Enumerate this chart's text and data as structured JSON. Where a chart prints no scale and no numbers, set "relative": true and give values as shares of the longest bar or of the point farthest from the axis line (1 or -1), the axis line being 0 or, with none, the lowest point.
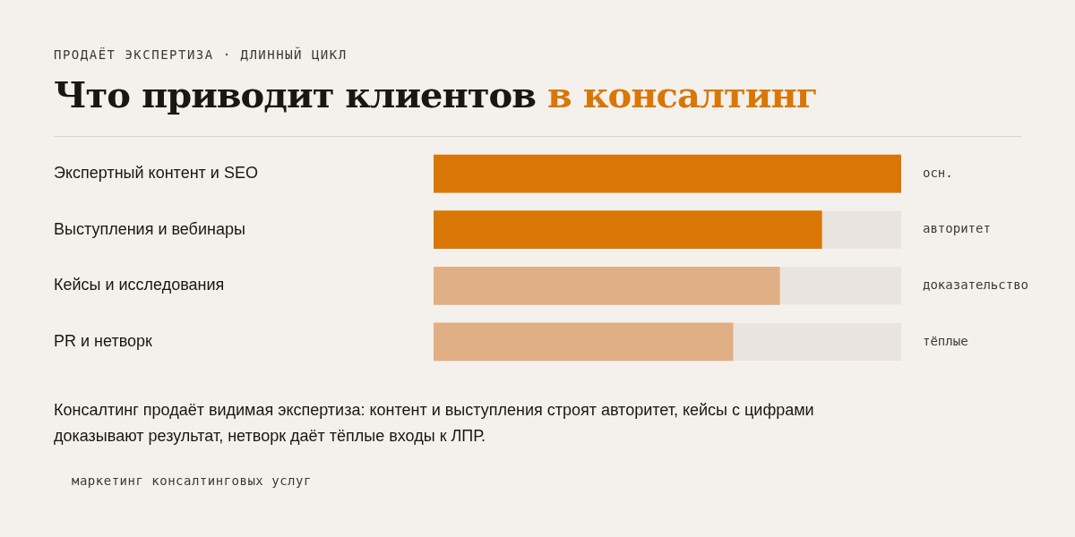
{
  "chart_data": {
    "type": "bar",
    "orientation": "horizontal",
    "relative": true,
    "subtitle": "ПРОДАЁТ ЭКСПЕРТИЗА · ДЛИННЫЙ ЦИКЛ",
    "title": "Что приводит клиентов в консалтинг",
    "categories": [
      "Экспертный контент и SEO",
      "Выступления и вебинары",
      "Кейсы и исследования",
      "PR и нетворк"
    ],
    "values": [
      1,
      0.83,
      0.74,
      0.64
    ],
    "colors": [
      "#d97706",
      "#d97706",
      "#e1af86",
      "#e1af86"
    ],
    "annotations": [
      "осн.",
      "авторитет",
      "доказательство",
      "тёплые",
      "Консалтинг продаёт видимая экспертиза: контент и выступления строят авторитет, кейсы с цифрами доказывают результат, нетворк даёт тёплые входы к ЛПР.",
      "маркетинг консалтинговых услуг"
    ],
    "legend": false
  }
}
